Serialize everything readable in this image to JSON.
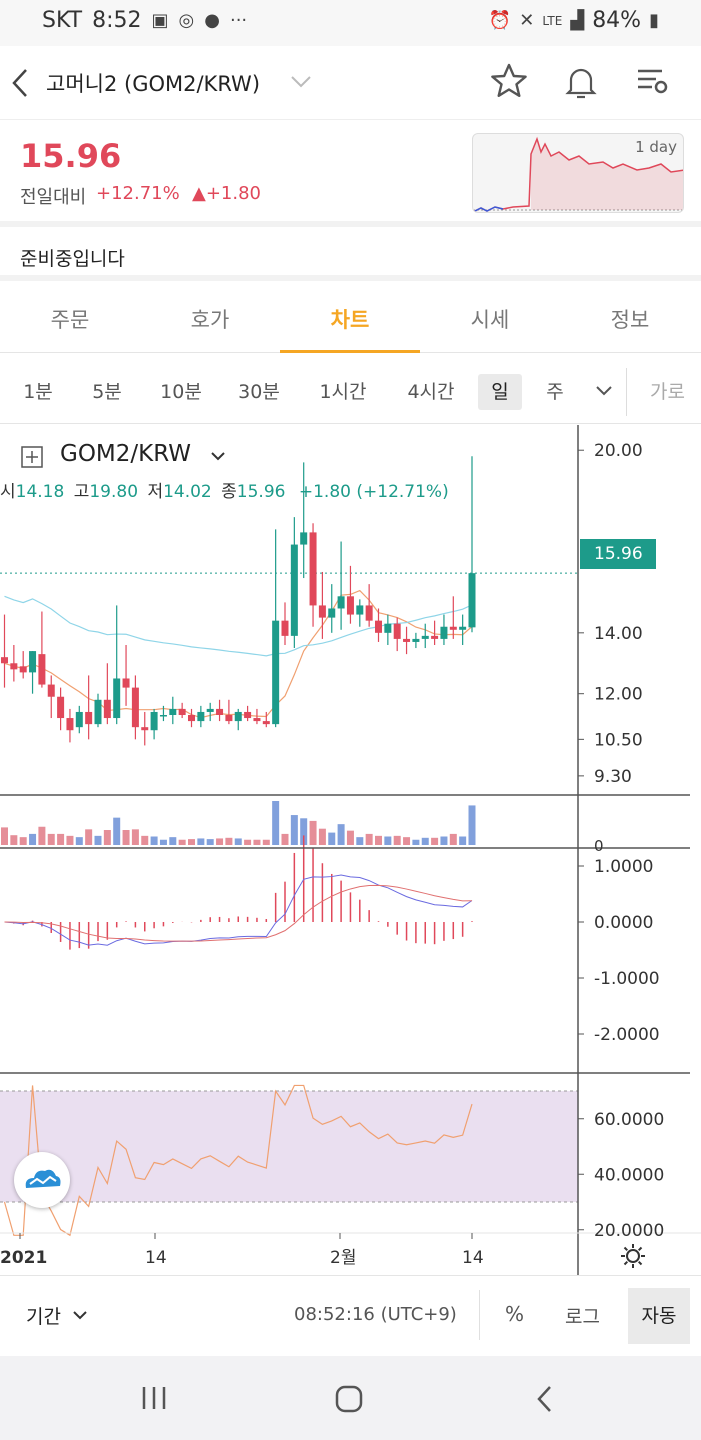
{
  "status": {
    "carrier": "SKT",
    "time": "8:52",
    "battery": "84%",
    "network": "LTE"
  },
  "header": {
    "title": "고머니2 (GOM2/KRW)",
    "icons": [
      "back-arrow-icon",
      "chevron-down-icon",
      "star-icon",
      "bell-icon",
      "settings-list-icon"
    ]
  },
  "price": {
    "current": "15.96",
    "change_label": "전일대비",
    "change_pct": "+12.71%",
    "change_abs": "▲+1.80",
    "mini_chart_label": "1 day",
    "color_up": "#e0485a"
  },
  "notice": "준비중입니다",
  "tabs": [
    "주문",
    "호가",
    "차트",
    "시세",
    "정보"
  ],
  "active_tab": "차트",
  "intervals": [
    "1분",
    "5분",
    "10분",
    "30분",
    "1시간",
    "4시간",
    "일",
    "주",
    "가로"
  ],
  "chart_header": {
    "symbol": "GOM2/KRW",
    "o_label": "시",
    "o_val": "14.18",
    "h_label": "고",
    "h_val": "19.80",
    "l_label": "저",
    "l_val": "14.02",
    "c_label": "종",
    "c_val": "15.96",
    "chg": "+1.80 (+12.71%)"
  },
  "axes": {
    "price_ticks": [
      "20.00",
      "14.00",
      "12.00",
      "10.50",
      "9.30"
    ],
    "price_current": "15.96",
    "volume_ticks": [
      "0"
    ],
    "macd_ticks": [
      "1.0000",
      "0.0000",
      "-1.0000",
      "-2.0000"
    ],
    "rsi_ticks": [
      "60.0000",
      "40.0000",
      "20.0000"
    ],
    "date_ticks": [
      "2021",
      "14",
      "2월",
      "14"
    ]
  },
  "chart_data": {
    "type": "candlestick",
    "series_note": "daily OHLC estimated",
    "candles": [
      [
        13.2,
        14.6,
        12.2,
        13.0
      ],
      [
        13.0,
        13.6,
        12.4,
        12.8
      ],
      [
        12.9,
        13.4,
        12.5,
        12.7
      ],
      [
        12.7,
        13.4,
        12.0,
        13.4
      ],
      [
        13.3,
        14.7,
        12.2,
        12.3
      ],
      [
        12.3,
        12.6,
        11.2,
        11.9
      ],
      [
        11.9,
        12.2,
        10.8,
        11.2
      ],
      [
        11.2,
        11.5,
        10.4,
        10.8
      ],
      [
        10.9,
        11.6,
        10.7,
        11.4
      ],
      [
        11.4,
        12.6,
        10.5,
        11.0
      ],
      [
        11.0,
        12.0,
        10.9,
        11.8
      ],
      [
        11.8,
        13.0,
        11.0,
        11.2
      ],
      [
        11.2,
        14.9,
        11.0,
        12.5
      ],
      [
        12.5,
        13.6,
        11.6,
        12.2
      ],
      [
        12.2,
        12.6,
        10.5,
        10.9
      ],
      [
        10.9,
        11.4,
        10.3,
        10.8
      ],
      [
        10.8,
        11.5,
        10.5,
        11.4
      ],
      [
        11.3,
        11.6,
        11.1,
        11.3
      ],
      [
        11.3,
        11.9,
        11.0,
        11.5
      ],
      [
        11.5,
        11.7,
        11.2,
        11.3
      ],
      [
        11.3,
        11.5,
        10.9,
        11.1
      ],
      [
        11.1,
        11.6,
        10.9,
        11.4
      ],
      [
        11.4,
        11.7,
        11.1,
        11.5
      ],
      [
        11.5,
        11.8,
        11.1,
        11.3
      ],
      [
        11.3,
        11.8,
        11.0,
        11.1
      ],
      [
        11.1,
        11.5,
        10.8,
        11.4
      ],
      [
        11.4,
        11.6,
        11.1,
        11.2
      ],
      [
        11.2,
        11.5,
        11.0,
        11.1
      ],
      [
        11.1,
        11.4,
        10.9,
        11.0
      ],
      [
        11.0,
        17.4,
        10.9,
        14.4
      ],
      [
        14.4,
        15.0,
        13.6,
        13.9
      ],
      [
        13.9,
        17.8,
        13.5,
        16.9
      ],
      [
        16.9,
        19.6,
        15.8,
        17.3
      ],
      [
        17.3,
        17.6,
        14.2,
        14.9
      ],
      [
        14.9,
        16.0,
        13.8,
        14.5
      ],
      [
        14.5,
        15.6,
        14.0,
        14.8
      ],
      [
        14.8,
        17.0,
        14.1,
        15.2
      ],
      [
        15.2,
        16.2,
        14.3,
        14.6
      ],
      [
        14.6,
        15.1,
        14.2,
        14.9
      ],
      [
        14.9,
        15.6,
        14.2,
        14.4
      ],
      [
        14.4,
        14.8,
        13.7,
        14.0
      ],
      [
        14.0,
        14.6,
        13.6,
        14.3
      ],
      [
        14.3,
        14.5,
        13.4,
        13.8
      ],
      [
        13.8,
        14.2,
        13.3,
        13.7
      ],
      [
        13.7,
        14.0,
        13.5,
        13.8
      ],
      [
        13.8,
        14.3,
        13.5,
        13.9
      ],
      [
        13.9,
        14.4,
        13.6,
        13.8
      ],
      [
        13.8,
        14.6,
        13.6,
        14.2
      ],
      [
        14.2,
        15.2,
        13.8,
        14.1
      ],
      [
        14.1,
        14.6,
        13.6,
        14.2
      ],
      [
        14.18,
        19.8,
        14.02,
        15.96
      ]
    ],
    "ylim": [
      9.0,
      20.5
    ]
  },
  "bottom": {
    "period": "기간",
    "time": "08:52:16 (UTC+9)",
    "pct": "%",
    "log": "로그",
    "auto": "자동"
  }
}
